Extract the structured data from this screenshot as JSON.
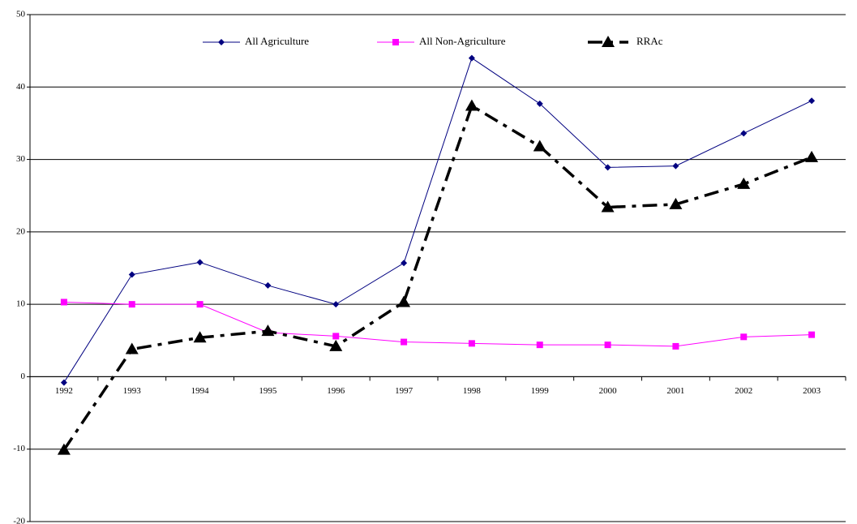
{
  "chart_data": {
    "type": "line",
    "categories": [
      "1992",
      "1993",
      "1994",
      "1995",
      "1996",
      "1997",
      "1998",
      "1999",
      "2000",
      "2001",
      "2002",
      "2003"
    ],
    "series": [
      {
        "name": "All Agriculture",
        "color": "#000080",
        "marker": "diamond",
        "dash": "solid",
        "values": [
          -0.8,
          14.1,
          15.8,
          12.6,
          10.0,
          15.7,
          44.0,
          37.7,
          28.9,
          29.1,
          33.6,
          38.1
        ]
      },
      {
        "name": "All Non-Agriculture",
        "color": "#ff00ff",
        "marker": "square",
        "dash": "solid",
        "values": [
          10.3,
          10.0,
          10.0,
          6.1,
          5.6,
          4.8,
          4.6,
          4.4,
          4.4,
          4.2,
          5.5,
          5.8
        ]
      },
      {
        "name": "RRAc",
        "color": "#000000",
        "marker": "triangle",
        "dash": "dashdot",
        "values": [
          -10.1,
          3.8,
          5.4,
          6.3,
          4.2,
          10.3,
          37.4,
          31.8,
          23.4,
          23.8,
          26.6,
          30.3
        ]
      }
    ],
    "ylim": [
      -20,
      50
    ],
    "yticks": [
      -20,
      -10,
      0,
      10,
      20,
      30,
      40,
      50
    ],
    "grid": true,
    "legend": "top"
  }
}
